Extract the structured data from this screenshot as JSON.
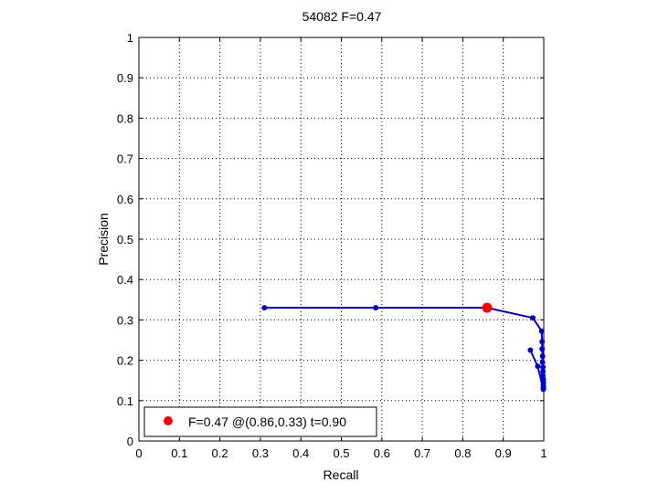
{
  "chart_data": {
    "type": "line",
    "title": "54082 F=0.47",
    "xlabel": "Recall",
    "ylabel": "Precision",
    "xlim": [
      0,
      1
    ],
    "ylim": [
      0,
      1
    ],
    "xticks": [
      "0",
      "0.1",
      "0.2",
      "0.3",
      "0.4",
      "0.5",
      "0.6",
      "0.7",
      "0.8",
      "0.9",
      "1"
    ],
    "yticks": [
      "0",
      "0.1",
      "0.2",
      "0.3",
      "0.4",
      "0.5",
      "0.6",
      "0.7",
      "0.8",
      "0.9",
      "1"
    ],
    "grid": true,
    "grid_style": "dotted",
    "legend_position": "bottom-left",
    "series": [
      {
        "color": "#0000cc",
        "points": [
          [
            0.31,
            0.33
          ],
          [
            0.585,
            0.33
          ],
          [
            0.86,
            0.33
          ],
          [
            0.973,
            0.305
          ],
          [
            0.995,
            0.272
          ],
          [
            0.996,
            0.246
          ],
          [
            0.996,
            0.228
          ],
          [
            0.997,
            0.21
          ],
          [
            0.997,
            0.195
          ],
          [
            0.998,
            0.183
          ],
          [
            0.998,
            0.172
          ],
          [
            0.998,
            0.162
          ],
          [
            0.999,
            0.153
          ],
          [
            0.999,
            0.145
          ],
          [
            0.999,
            0.138
          ],
          [
            0.999,
            0.132
          ],
          [
            0.999,
            0.128
          ],
          [
            0.985,
            0.185
          ],
          [
            0.967,
            0.225
          ]
        ]
      }
    ],
    "best_point": {
      "recall": 0.86,
      "precision": 0.33,
      "color": "#ff0000",
      "legend_label": "F=0.47 @(0.86,0.33) t=0.90"
    }
  }
}
